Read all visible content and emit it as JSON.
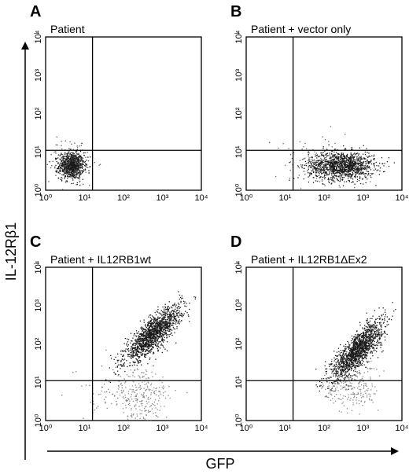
{
  "figure": {
    "x_axis_label": "GFP",
    "y_axis_label": "IL-12Rβ1"
  },
  "chart_data": [
    {
      "type": "scatter",
      "panel_letter": "A",
      "title": "Patient",
      "xscale": "log",
      "yscale": "log",
      "xlim": [
        1,
        10000
      ],
      "ylim": [
        1,
        10000
      ],
      "x_ticks": [
        "10⁰",
        "10¹",
        "10²",
        "10³",
        "10⁴"
      ],
      "y_ticks": [
        "10⁰",
        "10¹",
        "10²",
        "10³",
        "10⁴"
      ],
      "quadrant_gates": {
        "x": 16,
        "y": 11
      },
      "populations": [
        {
          "center": [
            4.5,
            4.5
          ],
          "spread": [
            0.16,
            0.17
          ],
          "count": 900,
          "color": "#1a1a1a"
        },
        {
          "center": [
            4.5,
            5.5
          ],
          "spread": [
            0.32,
            0.32
          ],
          "count": 120,
          "color": "#555555"
        }
      ]
    },
    {
      "type": "scatter",
      "panel_letter": "B",
      "title": "Patient + vector only",
      "xscale": "log",
      "yscale": "log",
      "xlim": [
        1,
        10000
      ],
      "ylim": [
        1,
        10000
      ],
      "x_ticks": [
        "10⁰",
        "10¹",
        "10²",
        "10³",
        "10⁴"
      ],
      "y_ticks": [
        "10⁰",
        "10¹",
        "10²",
        "10³",
        "10⁴"
      ],
      "quadrant_gates": {
        "x": 16,
        "y": 11
      },
      "populations": [
        {
          "center": [
            280,
            4.5
          ],
          "spread": [
            0.42,
            0.18
          ],
          "count": 1300,
          "color": "#1a1a1a"
        },
        {
          "center": [
            60,
            5
          ],
          "spread": [
            0.55,
            0.35
          ],
          "count": 120,
          "color": "#666666"
        }
      ]
    },
    {
      "type": "scatter",
      "panel_letter": "C",
      "title": "Patient + IL12RB1wt",
      "xscale": "log",
      "yscale": "log",
      "xlim": [
        1,
        10000
      ],
      "ylim": [
        1,
        10000
      ],
      "x_ticks": [
        "10⁰",
        "10¹",
        "10²",
        "10³",
        "10⁴"
      ],
      "y_ticks": [
        "10⁰",
        "10¹",
        "10²",
        "10³",
        "10⁴"
      ],
      "quadrant_gates": {
        "x": 16,
        "y": 11
      },
      "populations": [
        {
          "center": [
            550,
            180
          ],
          "spread": [
            0.36,
            0.36
          ],
          "correlation": 0.82,
          "count": 1500,
          "color": "#1a1a1a"
        },
        {
          "center": [
            300,
            4
          ],
          "spread": [
            0.35,
            0.4
          ],
          "count": 260,
          "color": "#888888"
        },
        {
          "center": [
            40,
            6
          ],
          "spread": [
            0.45,
            0.35
          ],
          "count": 60,
          "color": "#777777"
        }
      ]
    },
    {
      "type": "scatter",
      "panel_letter": "D",
      "title": "Patient + IL12RB1ΔEx2",
      "xscale": "log",
      "yscale": "log",
      "xlim": [
        1,
        10000
      ],
      "ylim": [
        1,
        10000
      ],
      "x_ticks": [
        "10⁰",
        "10¹",
        "10²",
        "10³",
        "10⁴"
      ],
      "y_ticks": [
        "10⁰",
        "10¹",
        "10²",
        "10³",
        "10⁴"
      ],
      "quadrant_gates": {
        "x": 16,
        "y": 11
      },
      "populations": [
        {
          "center": [
            700,
            70
          ],
          "spread": [
            0.33,
            0.38
          ],
          "correlation": 0.8,
          "count": 1500,
          "color": "#1a1a1a"
        },
        {
          "center": [
            500,
            7
          ],
          "spread": [
            0.35,
            0.3
          ],
          "count": 220,
          "color": "#888888"
        }
      ]
    }
  ]
}
